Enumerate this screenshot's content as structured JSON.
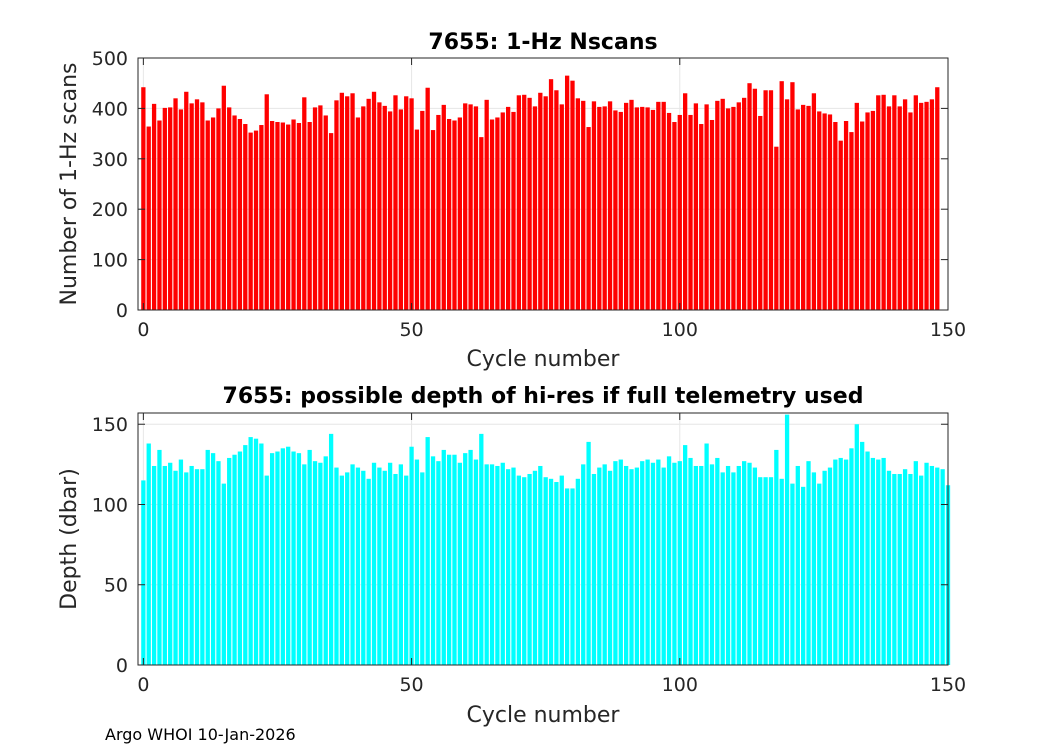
{
  "footer_text": "Argo WHOI 10-Jan-2026",
  "chart_data": [
    {
      "type": "bar",
      "title": "7655: 1-Hz Nscans",
      "xlabel": "Cycle number",
      "ylabel": "Number of 1-Hz scans",
      "xlim": [
        -1,
        150
      ],
      "ylim": [
        0,
        500
      ],
      "xticks": [
        "0",
        "50",
        "100",
        "150"
      ],
      "yticks": [
        "0",
        "100",
        "200",
        "300",
        "400",
        "500"
      ],
      "grid": true,
      "color": "#ff0000",
      "x_start": 0,
      "values": [
        442,
        364,
        409,
        376,
        401,
        402,
        420,
        398,
        433,
        410,
        418,
        412,
        376,
        382,
        400,
        445,
        402,
        386,
        379,
        369,
        352,
        356,
        367,
        428,
        375,
        373,
        372,
        368,
        378,
        371,
        422,
        373,
        402,
        406,
        386,
        351,
        416,
        431,
        424,
        430,
        382,
        404,
        419,
        433,
        412,
        405,
        394,
        426,
        398,
        424,
        420,
        358,
        395,
        441,
        357,
        387,
        407,
        379,
        376,
        382,
        410,
        408,
        404,
        343,
        417,
        378,
        382,
        392,
        403,
        393,
        426,
        427,
        421,
        404,
        431,
        424,
        458,
        436,
        408,
        465,
        455,
        420,
        415,
        363,
        414,
        403,
        404,
        414,
        396,
        393,
        411,
        417,
        402,
        403,
        402,
        397,
        413,
        413,
        391,
        373,
        387,
        430,
        387,
        410,
        369,
        408,
        377,
        415,
        419,
        400,
        403,
        412,
        421,
        450,
        439,
        385,
        436,
        436,
        324,
        454,
        418,
        452,
        398,
        407,
        405,
        430,
        394,
        390,
        388,
        373,
        336,
        375,
        353,
        411,
        374,
        392,
        395,
        426,
        427,
        404,
        426,
        404,
        418,
        392,
        426,
        411,
        413,
        418,
        442
      ]
    },
    {
      "type": "bar",
      "title": "7655: possible depth of hi-res if full telemetry used",
      "xlabel": "Cycle number",
      "ylabel": "Depth (dbar)",
      "xlim": [
        -1,
        150
      ],
      "ylim": [
        0,
        157
      ],
      "xticks": [
        "0",
        "50",
        "100",
        "150"
      ],
      "yticks": [
        "0",
        "50",
        "100",
        "150"
      ],
      "grid": true,
      "color": "#00ffff",
      "x_start": 0,
      "values": [
        115,
        138,
        124,
        134,
        124,
        126,
        121,
        128,
        120,
        124,
        122,
        122,
        134,
        132,
        127,
        113,
        129,
        131,
        133,
        137,
        142,
        141,
        138,
        118,
        132,
        133,
        135,
        136,
        133,
        132,
        125,
        134,
        127,
        126,
        130,
        144,
        123,
        118,
        120,
        125,
        123,
        121,
        116,
        126,
        123,
        121,
        126,
        119,
        125,
        118,
        136,
        128,
        120,
        142,
        130,
        127,
        134,
        131,
        131,
        126,
        132,
        134,
        128,
        144,
        125,
        125,
        124,
        126,
        122,
        123,
        118,
        117,
        119,
        121,
        124,
        117,
        116,
        114,
        118,
        110,
        110,
        116,
        125,
        139,
        119,
        123,
        125,
        121,
        127,
        128,
        124,
        122,
        123,
        127,
        128,
        126,
        128,
        123,
        130,
        126,
        127,
        137,
        129,
        124,
        124,
        138,
        125,
        129,
        120,
        124,
        120,
        124,
        127,
        126,
        123,
        117,
        117,
        117,
        134,
        116,
        156,
        113,
        124,
        111,
        127,
        120,
        113,
        121,
        123,
        128,
        129,
        128,
        135,
        150,
        139,
        133,
        129,
        128,
        129,
        121,
        119,
        119,
        122,
        119,
        127,
        118,
        126,
        124,
        123,
        122,
        112
      ]
    }
  ]
}
